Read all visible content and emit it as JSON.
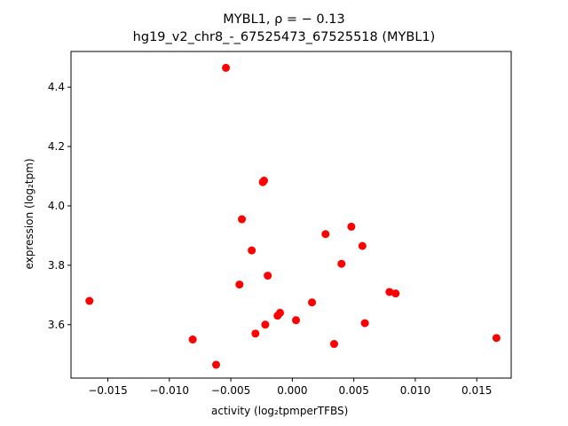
{
  "chart_data": {
    "type": "scatter",
    "title_line1": "MYBL1, ρ = − 0.13",
    "title_line2": "hg19_v2_chr8_-_67525473_67525518 (MYBL1)",
    "xlabel": "activity (log₂tpmperTFBS)",
    "ylabel": "expression (log₂tpm)",
    "xlim": [
      -0.018,
      0.0178
    ],
    "ylim": [
      3.42,
      4.52
    ],
    "x_ticks": [
      -0.015,
      -0.01,
      -0.005,
      0.0,
      0.005,
      0.01,
      0.015
    ],
    "x_tick_labels": [
      "−0.015",
      "−0.010",
      "−0.005",
      "0.000",
      "0.005",
      "0.010",
      "0.015"
    ],
    "y_ticks": [
      3.6,
      3.8,
      4.0,
      4.2,
      4.4
    ],
    "y_tick_labels": [
      "3.6",
      "3.8",
      "4.0",
      "4.2",
      "4.4"
    ],
    "marker_color": "#ff0000",
    "points": [
      {
        "x": -0.0054,
        "y": 4.465
      },
      {
        "x": -0.0165,
        "y": 3.68
      },
      {
        "x": -0.0081,
        "y": 3.55
      },
      {
        "x": -0.0062,
        "y": 3.465
      },
      {
        "x": -0.0024,
        "y": 4.08
      },
      {
        "x": -0.0023,
        "y": 4.085
      },
      {
        "x": -0.0041,
        "y": 3.955
      },
      {
        "x": -0.0033,
        "y": 3.85
      },
      {
        "x": -0.002,
        "y": 3.765
      },
      {
        "x": -0.0043,
        "y": 3.735
      },
      {
        "x": -0.003,
        "y": 3.57
      },
      {
        "x": -0.0022,
        "y": 3.6
      },
      {
        "x": -0.0012,
        "y": 3.63
      },
      {
        "x": -0.001,
        "y": 3.64
      },
      {
        "x": 0.0003,
        "y": 3.615
      },
      {
        "x": 0.0016,
        "y": 3.675
      },
      {
        "x": 0.0027,
        "y": 3.905
      },
      {
        "x": 0.0034,
        "y": 3.535
      },
      {
        "x": 0.004,
        "y": 3.805
      },
      {
        "x": 0.0048,
        "y": 3.93
      },
      {
        "x": 0.0057,
        "y": 3.865
      },
      {
        "x": 0.0059,
        "y": 3.605
      },
      {
        "x": 0.0079,
        "y": 3.71
      },
      {
        "x": 0.0084,
        "y": 3.705
      },
      {
        "x": 0.0166,
        "y": 3.555
      }
    ]
  }
}
